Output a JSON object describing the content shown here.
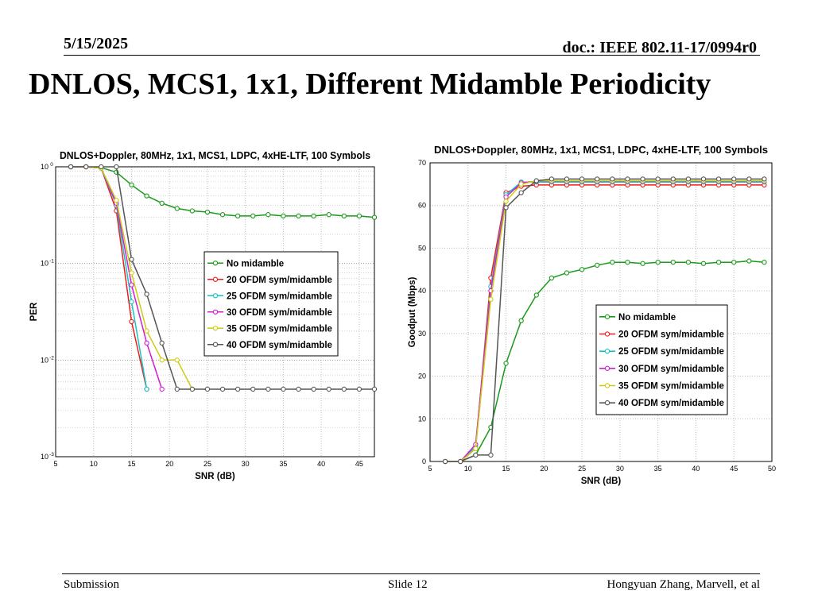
{
  "header": {
    "date": "5/15/2025",
    "doc": "doc.: IEEE 802.11-17/0994r0"
  },
  "slide": {
    "title": "DNLOS, MCS1, 1x1, Different Midamble Periodicity"
  },
  "footer": {
    "left": "Submission",
    "center": "Slide 12",
    "right": "Hongyuan Zhang, Marvell, et al"
  },
  "chart_data": [
    {
      "type": "line",
      "title": "DNLOS+Doppler, 80MHz, 1x1, MCS1, LDPC, 4xHE-LTF, 100 Symbols",
      "xlabel": "SNR (dB)",
      "ylabel": "PER",
      "xlim": [
        5,
        47
      ],
      "ylim": [
        0.001,
        1
      ],
      "yscale": "log",
      "xticks": [
        5,
        10,
        15,
        20,
        25,
        30,
        35,
        40,
        45
      ],
      "yticks": [
        {
          "value": 1,
          "base": "10",
          "exp": "0"
        },
        {
          "value": 0.1,
          "base": "10",
          "exp": "-1"
        },
        {
          "value": 0.01,
          "base": "10",
          "exp": "-2"
        },
        {
          "value": 0.001,
          "base": "10",
          "exp": "-3"
        }
      ],
      "grid": true,
      "legend_position": "right",
      "series": [
        {
          "name": "No midamble",
          "color": "#1a9a1a",
          "x": [
            7,
            9,
            11,
            13,
            15,
            17,
            19,
            21,
            23,
            25,
            27,
            29,
            31,
            33,
            35,
            37,
            39,
            41,
            43,
            45,
            47
          ],
          "y": [
            1,
            1,
            0.98,
            0.88,
            0.65,
            0.5,
            0.42,
            0.37,
            0.35,
            0.34,
            0.32,
            0.31,
            0.31,
            0.32,
            0.31,
            0.31,
            0.31,
            0.32,
            0.31,
            0.31,
            0.3
          ]
        },
        {
          "name": "20 OFDM sym/midamble",
          "color": "#ee1c1c",
          "x": [
            7,
            9,
            11,
            13,
            15,
            17
          ],
          "y": [
            1,
            1,
            0.97,
            0.35,
            0.025,
            0.005
          ]
        },
        {
          "name": "25 OFDM sym/midamble",
          "color": "#17c3c3",
          "x": [
            7,
            9,
            11,
            13,
            15,
            17
          ],
          "y": [
            1,
            1,
            0.97,
            0.4,
            0.04,
            0.005
          ]
        },
        {
          "name": "30 OFDM sym/midamble",
          "color": "#d21dd2",
          "x": [
            7,
            9,
            11,
            13,
            15,
            17,
            19
          ],
          "y": [
            1,
            1,
            0.97,
            0.42,
            0.06,
            0.015,
            0.005
          ]
        },
        {
          "name": "35 OFDM sym/midamble",
          "color": "#cccc10",
          "x": [
            7,
            9,
            11,
            13,
            15,
            17,
            19,
            21,
            23
          ],
          "y": [
            1,
            1,
            0.97,
            0.45,
            0.08,
            0.02,
            0.01,
            0.01,
            0.005
          ]
        },
        {
          "name": "40 OFDM sym/midamble",
          "color": "#555555",
          "x": [
            7,
            9,
            11,
            13,
            15,
            17,
            19,
            21,
            23,
            25,
            27,
            29,
            31,
            33,
            35,
            37,
            39,
            41,
            43,
            45,
            47
          ],
          "y": [
            1,
            1,
            1,
            1,
            0.11,
            0.048,
            0.015,
            0.005,
            0.005,
            0.005,
            0.005,
            0.005,
            0.005,
            0.005,
            0.005,
            0.005,
            0.005,
            0.005,
            0.005,
            0.005,
            0.005
          ]
        }
      ]
    },
    {
      "type": "line",
      "title": "DNLOS+Doppler, 80MHz, 1x1, MCS1, LDPC, 4xHE-LTF, 100 Symbols",
      "xlabel": "SNR (dB)",
      "ylabel": "Goodput (Mbps)",
      "xlim": [
        5,
        50
      ],
      "ylim": [
        0,
        70
      ],
      "xticks": [
        5,
        10,
        15,
        20,
        25,
        30,
        35,
        40,
        45,
        50
      ],
      "yticks": [
        0,
        10,
        20,
        30,
        40,
        50,
        60,
        70
      ],
      "grid": true,
      "legend_position": "right",
      "series": [
        {
          "name": "No midamble",
          "color": "#1a9a1a",
          "x": [
            7,
            9,
            11,
            13,
            15,
            17,
            19,
            21,
            23,
            25,
            27,
            29,
            31,
            33,
            35,
            37,
            39,
            41,
            43,
            45,
            47,
            49
          ],
          "y": [
            0,
            0,
            1.5,
            8,
            23,
            33,
            39,
            43,
            44.2,
            45,
            46,
            46.7,
            46.7,
            46.4,
            46.7,
            46.7,
            46.7,
            46.4,
            46.7,
            46.7,
            47,
            46.7
          ]
        },
        {
          "name": "20 OFDM sym/midamble",
          "color": "#ee1c1c",
          "x": [
            7,
            9,
            11,
            13,
            15,
            17,
            19,
            21,
            23,
            25,
            27,
            29,
            31,
            33,
            35,
            37,
            39,
            41,
            43,
            45,
            47,
            49
          ],
          "y": [
            0,
            0,
            3,
            43,
            63,
            64.5,
            64.8,
            64.8,
            64.8,
            64.8,
            64.8,
            64.8,
            64.8,
            64.8,
            64.8,
            64.8,
            64.8,
            64.8,
            64.8,
            64.8,
            64.8,
            64.8
          ]
        },
        {
          "name": "25 OFDM sym/midamble",
          "color": "#17c3c3",
          "x": [
            7,
            9,
            11,
            13,
            15,
            17,
            19,
            21,
            23,
            25,
            27,
            29,
            31,
            33,
            35,
            37,
            39,
            41,
            43,
            45,
            47,
            49
          ],
          "y": [
            0,
            0,
            3.5,
            41,
            62.5,
            65.5,
            65.5,
            65.5,
            65.5,
            65.5,
            65.5,
            65.5,
            65.5,
            65.5,
            65.5,
            65.5,
            65.5,
            65.5,
            65.5,
            65.5,
            65.5,
            65.5
          ]
        },
        {
          "name": "30 OFDM sym/midamble",
          "color": "#d21dd2",
          "x": [
            7,
            9,
            11,
            13,
            15,
            17,
            19,
            21,
            23,
            25,
            27,
            29,
            31,
            33,
            35,
            37,
            39,
            41,
            43,
            45,
            47,
            49
          ],
          "y": [
            0,
            0,
            4,
            40,
            62,
            65.3,
            65.7,
            65.7,
            65.7,
            65.7,
            65.7,
            65.7,
            65.7,
            65.7,
            65.7,
            65.7,
            65.7,
            65.7,
            65.7,
            65.7,
            65.7,
            65.7
          ]
        },
        {
          "name": "35 OFDM sym/midamble",
          "color": "#cccc10",
          "x": [
            7,
            9,
            11,
            13,
            15,
            17,
            19,
            21,
            23,
            25,
            27,
            29,
            31,
            33,
            35,
            37,
            39,
            41,
            43,
            45,
            47,
            49
          ],
          "y": [
            0,
            0,
            3,
            38,
            61,
            65,
            65.8,
            65.8,
            65.8,
            65.8,
            65.8,
            65.8,
            65.8,
            65.8,
            65.8,
            65.8,
            65.8,
            65.8,
            65.8,
            65.8,
            65.8,
            65.8
          ]
        },
        {
          "name": "40 OFDM sym/midamble",
          "color": "#555555",
          "x": [
            7,
            9,
            11,
            13,
            15,
            17,
            19,
            21,
            23,
            25,
            27,
            29,
            31,
            33,
            35,
            37,
            39,
            41,
            43,
            45,
            47,
            49
          ],
          "y": [
            0,
            0,
            1.5,
            1.5,
            59.5,
            63,
            65.8,
            66.2,
            66.2,
            66.2,
            66.2,
            66.2,
            66.2,
            66.2,
            66.2,
            66.2,
            66.2,
            66.2,
            66.2,
            66.2,
            66.2,
            66.2
          ]
        }
      ]
    }
  ]
}
